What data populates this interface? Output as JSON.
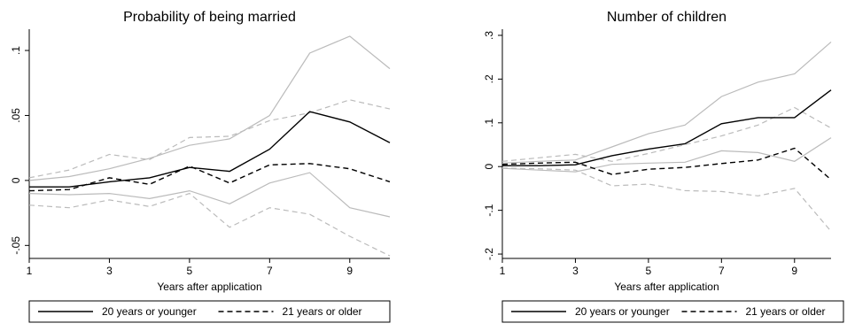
{
  "chart_data": [
    {
      "type": "line",
      "title": "Probability of being married",
      "xlabel": "Years after application",
      "ylabel": "",
      "xlim": [
        1,
        10
      ],
      "ylim": [
        -0.06,
        0.115
      ],
      "x_ticks": [
        1,
        3,
        5,
        7,
        9
      ],
      "x_tick_labels": [
        "1",
        "3",
        "5",
        "7",
        "9"
      ],
      "y_ticks": [
        -0.05,
        0,
        0.05,
        0.1
      ],
      "y_tick_labels": [
        "-.05",
        "0",
        ".05",
        ".1"
      ],
      "x": [
        1,
        2,
        3,
        4,
        5,
        6,
        7,
        8,
        9,
        10
      ],
      "series": [
        {
          "name": "20 years or younger",
          "role": "estimate",
          "color": "#000000",
          "dash": "solid",
          "values": [
            -0.005,
            -0.005,
            -0.001,
            0.002,
            0.01,
            0.007,
            0.024,
            0.053,
            0.045,
            0.029
          ]
        },
        {
          "role": "upper-ci",
          "color": "#bbbbbb",
          "dash": "solid",
          "values": [
            0.0,
            0.003,
            0.009,
            0.017,
            0.027,
            0.032,
            0.05,
            0.098,
            0.111,
            0.086
          ]
        },
        {
          "role": "lower-ci",
          "color": "#bbbbbb",
          "dash": "solid",
          "values": [
            -0.01,
            -0.011,
            -0.01,
            -0.014,
            -0.008,
            -0.018,
            -0.002,
            0.006,
            -0.021,
            -0.028
          ]
        },
        {
          "name": "21 years or older",
          "role": "estimate",
          "color": "#000000",
          "dash": "dashed",
          "values": [
            -0.008,
            -0.007,
            0.002,
            -0.003,
            0.011,
            -0.002,
            0.012,
            0.013,
            0.009,
            -0.001
          ]
        },
        {
          "role": "upper-ci",
          "color": "#bbbbbb",
          "dash": "dashed",
          "values": [
            0.002,
            0.008,
            0.02,
            0.016,
            0.033,
            0.034,
            0.046,
            0.052,
            0.062,
            0.055
          ]
        },
        {
          "role": "lower-ci",
          "color": "#bbbbbb",
          "dash": "dashed",
          "values": [
            -0.019,
            -0.021,
            -0.015,
            -0.02,
            -0.01,
            -0.036,
            -0.021,
            -0.026,
            -0.043,
            -0.058
          ]
        }
      ],
      "legend": {
        "position": "bottom",
        "entries": [
          {
            "label": "20 years or younger",
            "dash": "solid"
          },
          {
            "label": "21 years or older",
            "dash": "dashed"
          }
        ]
      }
    },
    {
      "type": "line",
      "title": "Number of children",
      "xlabel": "Years after application",
      "ylabel": "",
      "xlim": [
        1,
        10
      ],
      "ylim": [
        -0.21,
        0.31
      ],
      "x_ticks": [
        1,
        3,
        5,
        7,
        9
      ],
      "x_tick_labels": [
        "1",
        "3",
        "5",
        "7",
        "9"
      ],
      "y_ticks": [
        -0.2,
        -0.1,
        0,
        0.1,
        0.2,
        0.3
      ],
      "y_tick_labels": [
        "-.2",
        "-.1",
        "0",
        ".1",
        ".2",
        ".3"
      ],
      "x": [
        1,
        2,
        3,
        4,
        5,
        6,
        7,
        8,
        9,
        10
      ],
      "series": [
        {
          "name": "20 years or younger",
          "role": "estimate",
          "color": "#000000",
          "dash": "solid",
          "values": [
            0.002,
            0.002,
            0.004,
            0.025,
            0.04,
            0.052,
            0.098,
            0.112,
            0.112,
            0.175
          ]
        },
        {
          "role": "upper-ci",
          "color": "#bbbbbb",
          "dash": "solid",
          "values": [
            0.008,
            0.012,
            0.015,
            0.045,
            0.075,
            0.095,
            0.16,
            0.193,
            0.212,
            0.285
          ]
        },
        {
          "role": "lower-ci",
          "color": "#bbbbbb",
          "dash": "solid",
          "values": [
            -0.004,
            -0.008,
            -0.012,
            0.005,
            0.008,
            0.01,
            0.036,
            0.032,
            0.012,
            0.066
          ]
        },
        {
          "name": "21 years or older",
          "role": "estimate",
          "color": "#000000",
          "dash": "dashed",
          "values": [
            0.005,
            0.008,
            0.01,
            -0.018,
            -0.006,
            -0.002,
            0.007,
            0.015,
            0.042,
            -0.03
          ]
        },
        {
          "role": "upper-ci",
          "color": "#bbbbbb",
          "dash": "dashed",
          "values": [
            0.012,
            0.02,
            0.028,
            0.012,
            0.03,
            0.05,
            0.07,
            0.095,
            0.135,
            0.088
          ]
        },
        {
          "role": "lower-ci",
          "color": "#bbbbbb",
          "dash": "dashed",
          "values": [
            -0.003,
            -0.005,
            -0.008,
            -0.044,
            -0.04,
            -0.055,
            -0.057,
            -0.067,
            -0.05,
            -0.148
          ]
        }
      ],
      "legend": {
        "position": "bottom",
        "entries": [
          {
            "label": "20 years or younger",
            "dash": "solid"
          },
          {
            "label": "21 years or older",
            "dash": "dashed"
          }
        ]
      }
    }
  ]
}
